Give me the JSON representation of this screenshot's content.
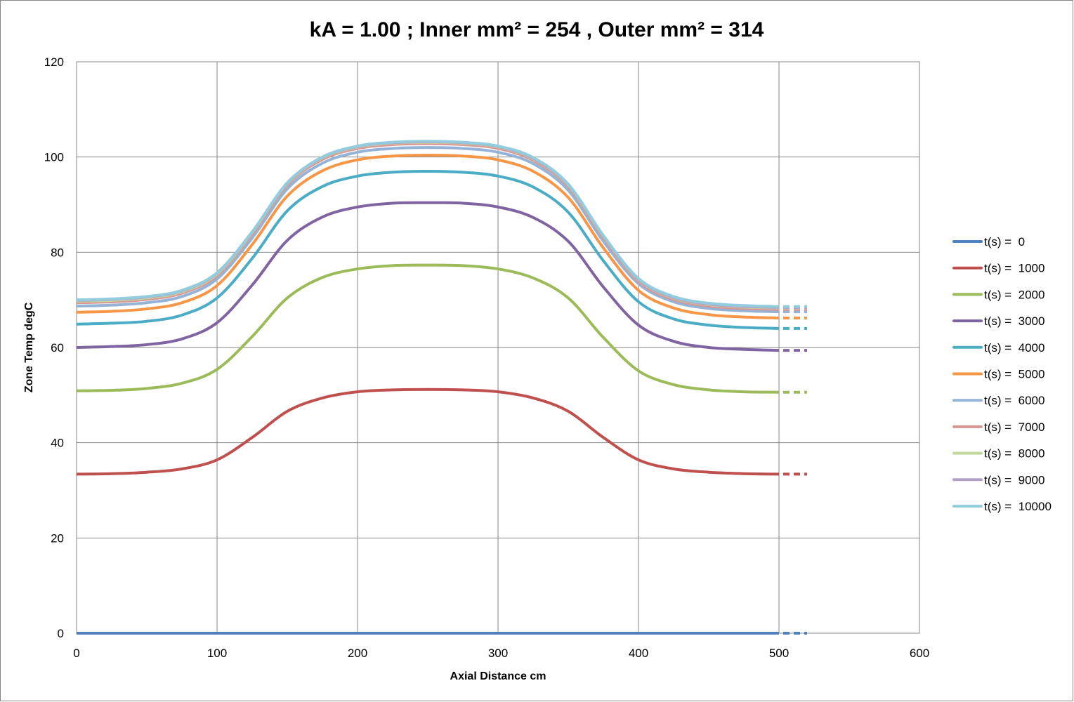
{
  "chart_data": {
    "type": "line",
    "title": "kA =  1.00 ; Inner  mm² =  254 , Outer  mm² = 314",
    "xlabel": "Axial Distance  cm",
    "ylabel": "Zone Temp degC",
    "xlim": [
      0,
      600
    ],
    "ylim": [
      0,
      120
    ],
    "xticks": [
      0,
      100,
      200,
      300,
      400,
      500,
      600
    ],
    "yticks": [
      0,
      20,
      40,
      60,
      80,
      100,
      120
    ],
    "grid": true,
    "legend_position": "right",
    "extension_to_x": 520,
    "x": [
      0,
      25,
      50,
      75,
      100,
      125,
      150,
      175,
      200,
      225,
      250,
      275,
      300,
      325,
      350,
      375,
      400,
      425,
      450,
      475,
      500
    ],
    "series": [
      {
        "name": "t(s) =  0",
        "color": "#4F81BD",
        "values": [
          0,
          0,
          0,
          0,
          0,
          0,
          0,
          0,
          0,
          0,
          0,
          0,
          0,
          0,
          0,
          0,
          0,
          0,
          0,
          0,
          0
        ]
      },
      {
        "name": "t(s) =  1000",
        "color": "#C0504D",
        "values": [
          33.4,
          33.5,
          33.8,
          34.5,
          36.4,
          41.1,
          46.6,
          49.4,
          50.7,
          51.1,
          51.2,
          51.1,
          50.7,
          49.4,
          46.6,
          41.1,
          36.4,
          34.5,
          33.8,
          33.5,
          33.4
        ]
      },
      {
        "name": "t(s) =  2000",
        "color": "#9BBB59",
        "values": [
          50.9,
          51.0,
          51.4,
          52.5,
          55.4,
          62.3,
          70.4,
          74.7,
          76.5,
          77.2,
          77.3,
          77.2,
          76.5,
          74.6,
          70.4,
          62.1,
          55.1,
          52.2,
          51.1,
          50.7,
          50.6
        ]
      },
      {
        "name": "t(s) =  3000",
        "color": "#8064A2",
        "values": [
          60.0,
          60.2,
          60.6,
          61.8,
          65.2,
          73.1,
          82.5,
          87.4,
          89.5,
          90.3,
          90.4,
          90.3,
          89.5,
          87.3,
          82.3,
          72.7,
          64.7,
          61.3,
          60.0,
          59.6,
          59.4
        ]
      },
      {
        "name": "t(s) =  4000",
        "color": "#4BACC6",
        "values": [
          64.9,
          65.1,
          65.5,
          66.8,
          70.4,
          78.7,
          88.7,
          93.8,
          96.0,
          96.8,
          97.0,
          96.8,
          96.0,
          93.7,
          88.4,
          78.2,
          69.6,
          66.0,
          64.7,
          64.2,
          64.0
        ]
      },
      {
        "name": "t(s) =  5000",
        "color": "#F79646",
        "values": [
          67.4,
          67.6,
          68.1,
          69.4,
          73.0,
          81.6,
          91.8,
          97.1,
          99.4,
          100.2,
          100.4,
          100.2,
          99.4,
          97.0,
          91.5,
          80.9,
          72.0,
          68.3,
          66.9,
          66.4,
          66.2
        ]
      },
      {
        "name": "t(s) =  6000",
        "color": "#95B3D7",
        "values": [
          68.7,
          68.9,
          69.4,
          70.7,
          74.4,
          83.0,
          93.3,
          98.7,
          101.0,
          101.8,
          102.0,
          101.8,
          101.0,
          98.6,
          93.0,
          82.3,
          73.4,
          69.6,
          68.2,
          67.7,
          67.5
        ]
      },
      {
        "name": "t(s) =  7000",
        "color": "#D99694",
        "values": [
          69.4,
          69.6,
          70.1,
          71.4,
          75.1,
          83.8,
          94.1,
          99.5,
          101.8,
          102.6,
          102.8,
          102.6,
          101.8,
          99.3,
          93.8,
          83.0,
          73.9,
          70.1,
          68.7,
          68.2,
          68.0
        ]
      },
      {
        "name": "t(s) =  8000",
        "color": "#C3D69B",
        "values": [
          69.7,
          69.9,
          70.4,
          71.7,
          75.4,
          84.1,
          94.4,
          99.8,
          102.1,
          102.9,
          103.1,
          102.9,
          102.1,
          99.6,
          94.1,
          83.3,
          74.2,
          70.4,
          69.0,
          68.5,
          68.3
        ]
      },
      {
        "name": "t(s) =  9000",
        "color": "#B3A2C7",
        "values": [
          69.9,
          70.1,
          70.6,
          71.9,
          75.6,
          84.2,
          94.5,
          99.9,
          102.2,
          103.0,
          103.2,
          103.0,
          102.2,
          99.7,
          94.2,
          83.4,
          74.3,
          70.5,
          69.1,
          68.6,
          68.4
        ]
      },
      {
        "name": "t(s) =  10000",
        "color": "#93CDDD",
        "values": [
          70.0,
          70.2,
          70.7,
          72.0,
          75.7,
          84.3,
          94.6,
          100.0,
          102.3,
          103.1,
          103.3,
          103.1,
          102.3,
          99.9,
          94.3,
          83.5,
          74.5,
          70.7,
          69.3,
          68.8,
          68.6
        ]
      }
    ]
  }
}
